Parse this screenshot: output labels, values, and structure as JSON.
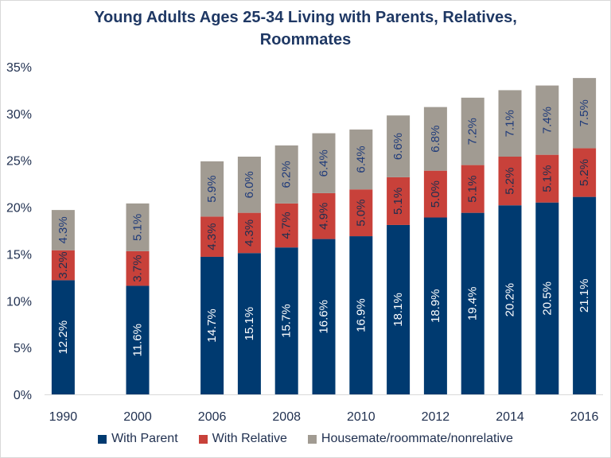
{
  "chart_data": {
    "type": "bar",
    "stacked": true,
    "title": "Young Adults Ages 25-34 Living with Parents, Relatives, Roommates",
    "title_lines": [
      "Young Adults Ages 25-34 Living with Parents, Relatives,",
      "Roommates"
    ],
    "xlabel": "",
    "ylabel": "",
    "ylim": [
      0,
      35
    ],
    "yticks": [
      0,
      5,
      10,
      15,
      20,
      25,
      30,
      35
    ],
    "ytick_labels": [
      "0%",
      "5%",
      "10%",
      "15%",
      "20%",
      "25%",
      "30%",
      "35%"
    ],
    "grid": false,
    "legend_position": "bottom",
    "categories": [
      "1990",
      "",
      "2000",
      "",
      "2006",
      "2007",
      "2008",
      "2009",
      "2010",
      "2011",
      "2012",
      "2013",
      "2014",
      "2015",
      "2016"
    ],
    "xtick_labels": [
      "1990",
      "",
      "2000",
      "",
      "2006",
      "",
      "2008",
      "",
      "2010",
      "",
      "2012",
      "",
      "2014",
      "",
      "2016"
    ],
    "series": [
      {
        "name": "With Parent",
        "color": "#003a70",
        "label_color": "#ffffff",
        "values": [
          12.2,
          null,
          11.6,
          null,
          14.7,
          15.1,
          15.7,
          16.6,
          16.9,
          18.1,
          18.9,
          19.4,
          20.2,
          20.5,
          21.1
        ],
        "labels": [
          "12.2%",
          "",
          "11.6%",
          "",
          "14.7%",
          "15.1%",
          "15.7%",
          "16.6%",
          "16.9%",
          "18.1%",
          "18.9%",
          "19.4%",
          "20.2%",
          "20.5%",
          "21.1%"
        ]
      },
      {
        "name": "With Relative",
        "color": "#c8413a",
        "label_color": "#1f2f4f",
        "values": [
          3.2,
          null,
          3.7,
          null,
          4.3,
          4.3,
          4.7,
          4.9,
          5.0,
          5.1,
          5.0,
          5.1,
          5.2,
          5.1,
          5.2
        ],
        "labels": [
          "3.2%",
          "",
          "3.7%",
          "",
          "4.3%",
          "4.3%",
          "4.7%",
          "4.9%",
          "5.0%",
          "5.1%",
          "5.0%",
          "5.1%",
          "5.2%",
          "5.1%",
          "5.2%"
        ]
      },
      {
        "name": "Housemate/roommate/nonrelative",
        "color": "#a19b92",
        "label_color": "#1f3b7a",
        "values": [
          4.3,
          null,
          5.1,
          null,
          5.9,
          6.0,
          6.2,
          6.4,
          6.4,
          6.6,
          6.8,
          7.2,
          7.1,
          7.4,
          7.5
        ],
        "labels": [
          "4.3%",
          "",
          "5.1%",
          "",
          "5.9%",
          "6.0%",
          "6.2%",
          "6.4%",
          "6.4%",
          "6.6%",
          "6.8%",
          "7.2%",
          "7.1%",
          "7.4%",
          "7.5%"
        ]
      }
    ]
  }
}
